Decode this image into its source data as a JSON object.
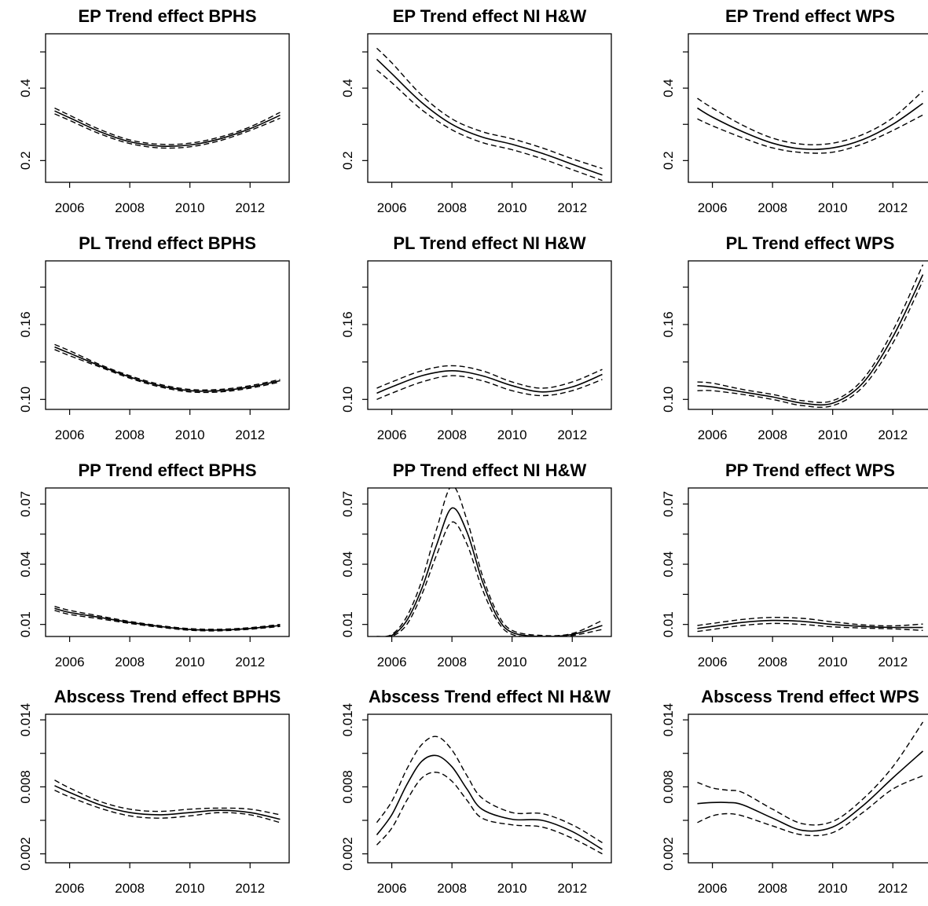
{
  "chart_data": [
    {
      "type": "line",
      "title": "EP Trend effect  BPHS",
      "xticks": [
        2006,
        2008,
        2010,
        2012
      ],
      "yticks": [
        "0.2",
        "0.4"
      ],
      "xlim": [
        2005.2,
        2013.3
      ],
      "ylim": [
        0.14,
        0.55
      ],
      "x": [
        2005.5,
        2006,
        2007,
        2008,
        2009,
        2010,
        2011,
        2012,
        2013
      ],
      "series": [
        {
          "style": "solid",
          "values": [
            0.337,
            0.318,
            0.28,
            0.252,
            0.24,
            0.243,
            0.26,
            0.288,
            0.325
          ]
        },
        {
          "style": "dashed",
          "values": [
            0.345,
            0.325,
            0.286,
            0.257,
            0.245,
            0.248,
            0.265,
            0.293,
            0.333
          ]
        },
        {
          "style": "dashed",
          "values": [
            0.329,
            0.311,
            0.274,
            0.247,
            0.235,
            0.238,
            0.255,
            0.283,
            0.317
          ]
        }
      ]
    },
    {
      "type": "line",
      "title": "EP Trend effect  NI H&W",
      "xticks": [
        2006,
        2008,
        2010,
        2012
      ],
      "yticks": [
        "0.2",
        "0.4"
      ],
      "xlim": [
        2005.2,
        2013.3
      ],
      "ylim": [
        0.14,
        0.55
      ],
      "x": [
        2005.5,
        2006,
        2007,
        2008,
        2009,
        2010,
        2011,
        2012,
        2013
      ],
      "series": [
        {
          "style": "solid",
          "values": [
            0.48,
            0.44,
            0.36,
            0.3,
            0.265,
            0.245,
            0.22,
            0.19,
            0.16
          ]
        },
        {
          "style": "dashed",
          "values": [
            0.51,
            0.47,
            0.38,
            0.315,
            0.28,
            0.26,
            0.235,
            0.205,
            0.178
          ]
        },
        {
          "style": "dashed",
          "values": [
            0.45,
            0.415,
            0.34,
            0.285,
            0.25,
            0.23,
            0.205,
            0.175,
            0.145
          ]
        }
      ]
    },
    {
      "type": "line",
      "title": "EP Trend effect  WPS",
      "xticks": [
        2006,
        2008,
        2010,
        2012
      ],
      "yticks": [
        "0.2",
        "0.4"
      ],
      "xlim": [
        2005.2,
        2013.3
      ],
      "ylim": [
        0.14,
        0.55
      ],
      "x": [
        2005.5,
        2006,
        2007,
        2008,
        2009,
        2010,
        2011,
        2012,
        2013
      ],
      "series": [
        {
          "style": "solid",
          "values": [
            0.345,
            0.32,
            0.28,
            0.248,
            0.232,
            0.235,
            0.258,
            0.3,
            0.358
          ]
        },
        {
          "style": "dashed",
          "values": [
            0.372,
            0.345,
            0.298,
            0.262,
            0.245,
            0.248,
            0.272,
            0.318,
            0.392
          ]
        },
        {
          "style": "dashed",
          "values": [
            0.315,
            0.296,
            0.263,
            0.235,
            0.222,
            0.223,
            0.246,
            0.283,
            0.326
          ]
        }
      ]
    },
    {
      "type": "line",
      "title": "PL Trend effect  BPHS",
      "xticks": [
        2006,
        2008,
        2010,
        2012
      ],
      "yticks": [
        "0.10",
        "0.16"
      ],
      "xlim": [
        2005.2,
        2013.3
      ],
      "ylim": [
        0.092,
        0.211
      ],
      "x": [
        2005.5,
        2006,
        2007,
        2008,
        2009,
        2010,
        2011,
        2012,
        2013
      ],
      "series": [
        {
          "style": "solid",
          "values": [
            0.142,
            0.137,
            0.127,
            0.118,
            0.111,
            0.107,
            0.107,
            0.11,
            0.115
          ]
        },
        {
          "style": "dashed",
          "values": [
            0.144,
            0.139,
            0.128,
            0.119,
            0.112,
            0.108,
            0.108,
            0.111,
            0.116
          ]
        },
        {
          "style": "dashed",
          "values": [
            0.14,
            0.135,
            0.126,
            0.117,
            0.11,
            0.106,
            0.106,
            0.109,
            0.114
          ]
        }
      ]
    },
    {
      "type": "line",
      "title": "PL Trend effect  NI H&W",
      "xticks": [
        2006,
        2008,
        2010,
        2012
      ],
      "yticks": [
        "0.10",
        "0.16"
      ],
      "xlim": [
        2005.2,
        2013.3
      ],
      "ylim": [
        0.092,
        0.211
      ],
      "x": [
        2005.5,
        2006,
        2007,
        2008,
        2009,
        2010,
        2011,
        2012,
        2013
      ],
      "series": [
        {
          "style": "solid",
          "values": [
            0.105,
            0.11,
            0.119,
            0.123,
            0.119,
            0.111,
            0.106,
            0.11,
            0.12
          ]
        },
        {
          "style": "dashed",
          "values": [
            0.109,
            0.114,
            0.123,
            0.127,
            0.123,
            0.114,
            0.109,
            0.114,
            0.124
          ]
        },
        {
          "style": "dashed",
          "values": [
            0.1,
            0.105,
            0.114,
            0.119,
            0.115,
            0.107,
            0.103,
            0.107,
            0.116
          ]
        }
      ]
    },
    {
      "type": "line",
      "title": "PL Trend effect  WPS",
      "xticks": [
        2006,
        2008,
        2010,
        2012
      ],
      "yticks": [
        "0.10",
        "0.16"
      ],
      "xlim": [
        2005.2,
        2013.3
      ],
      "ylim": [
        0.092,
        0.211
      ],
      "x": [
        2005.5,
        2006,
        2007,
        2008,
        2009,
        2010,
        2011,
        2012,
        2013
      ],
      "series": [
        {
          "style": "solid",
          "values": [
            0.111,
            0.11,
            0.106,
            0.102,
            0.097,
            0.097,
            0.113,
            0.15,
            0.2
          ]
        },
        {
          "style": "dashed",
          "values": [
            0.114,
            0.113,
            0.108,
            0.104,
            0.099,
            0.099,
            0.116,
            0.155,
            0.208
          ]
        },
        {
          "style": "dashed",
          "values": [
            0.107,
            0.107,
            0.104,
            0.1,
            0.095,
            0.095,
            0.11,
            0.145,
            0.195
          ]
        }
      ]
    },
    {
      "type": "line",
      "title": "PP Trend effect BPHS",
      "xticks": [
        2006,
        2008,
        2010,
        2012
      ],
      "yticks": [
        "0.01",
        "0.04",
        "0.07"
      ],
      "xlim": [
        2005.2,
        2013.3
      ],
      "ylim": [
        0.004,
        0.078
      ],
      "x": [
        2005.5,
        2006,
        2007,
        2008,
        2009,
        2010,
        2011,
        2012,
        2013
      ],
      "series": [
        {
          "style": "solid",
          "values": [
            0.018,
            0.016,
            0.0135,
            0.011,
            0.009,
            0.0075,
            0.0072,
            0.008,
            0.0095
          ]
        },
        {
          "style": "dashed",
          "values": [
            0.019,
            0.017,
            0.0142,
            0.0115,
            0.0094,
            0.0079,
            0.0076,
            0.0084,
            0.01
          ]
        },
        {
          "style": "dashed",
          "values": [
            0.017,
            0.015,
            0.0128,
            0.0105,
            0.0086,
            0.0071,
            0.0068,
            0.0076,
            0.009
          ]
        }
      ]
    },
    {
      "type": "line",
      "title": "PP Trend effect NI H&W",
      "xticks": [
        2006,
        2008,
        2010,
        2012
      ],
      "yticks": [
        "0.01",
        "0.04",
        "0.07"
      ],
      "xlim": [
        2005.2,
        2013.3
      ],
      "ylim": [
        0.004,
        0.078
      ],
      "x": [
        2005.5,
        2006,
        2006.5,
        2007,
        2007.5,
        2008,
        2008.5,
        2009,
        2009.5,
        2010,
        2011,
        2012,
        2013
      ],
      "series": [
        {
          "style": "solid",
          "values": [
            0.0035,
            0.0045,
            0.012,
            0.028,
            0.05,
            0.068,
            0.056,
            0.032,
            0.014,
            0.006,
            0.004,
            0.005,
            0.0095
          ]
        },
        {
          "style": "dashed",
          "values": [
            0.004,
            0.005,
            0.014,
            0.032,
            0.058,
            0.079,
            0.062,
            0.035,
            0.016,
            0.007,
            0.0045,
            0.0055,
            0.012
          ]
        },
        {
          "style": "dashed",
          "values": [
            0.003,
            0.004,
            0.01,
            0.025,
            0.045,
            0.061,
            0.05,
            0.028,
            0.012,
            0.005,
            0.0035,
            0.0045,
            0.0075
          ]
        }
      ]
    },
    {
      "type": "line",
      "title": "PP Trend effect WPS",
      "xticks": [
        2006,
        2008,
        2010,
        2012
      ],
      "yticks": [
        "0.01",
        "0.04",
        "0.07"
      ],
      "xlim": [
        2005.2,
        2013.3
      ],
      "ylim": [
        0.004,
        0.078
      ],
      "x": [
        2005.5,
        2006,
        2007,
        2008,
        2009,
        2010,
        2011,
        2012,
        2013
      ],
      "series": [
        {
          "style": "solid",
          "values": [
            0.008,
            0.009,
            0.011,
            0.012,
            0.0115,
            0.01,
            0.009,
            0.0085,
            0.0085
          ]
        },
        {
          "style": "dashed",
          "values": [
            0.0095,
            0.0105,
            0.0125,
            0.0135,
            0.013,
            0.0113,
            0.0098,
            0.0093,
            0.0102
          ]
        },
        {
          "style": "dashed",
          "values": [
            0.0065,
            0.0075,
            0.0095,
            0.0105,
            0.01,
            0.0088,
            0.0082,
            0.0078,
            0.007
          ]
        }
      ]
    },
    {
      "type": "line",
      "title": "Abscess Trend effect BPHS",
      "xticks": [
        2006,
        2008,
        2010,
        2012
      ],
      "yticks": [
        "0.002",
        "0.008",
        "0.014"
      ],
      "xlim": [
        2005.2,
        2013.3
      ],
      "ylim": [
        0.0012,
        0.0145
      ],
      "x": [
        2005.5,
        2006,
        2007,
        2008,
        2009,
        2010,
        2011,
        2012,
        2013
      ],
      "series": [
        {
          "style": "solid",
          "values": [
            0.0081,
            0.0075,
            0.0064,
            0.0057,
            0.0055,
            0.0057,
            0.0059,
            0.0057,
            0.0051
          ]
        },
        {
          "style": "dashed",
          "values": [
            0.0086,
            0.0079,
            0.0067,
            0.006,
            0.0058,
            0.006,
            0.0061,
            0.006,
            0.0055
          ]
        },
        {
          "style": "dashed",
          "values": [
            0.0077,
            0.0071,
            0.0061,
            0.0054,
            0.0052,
            0.0054,
            0.0057,
            0.0055,
            0.0048
          ]
        }
      ]
    },
    {
      "type": "line",
      "title": "Abscess Trend effect NI H&W",
      "xticks": [
        2006,
        2008,
        2010,
        2012
      ],
      "yticks": [
        "0.002",
        "0.008",
        "0.014"
      ],
      "xlim": [
        2005.2,
        2013.3
      ],
      "ylim": [
        0.0012,
        0.0145
      ],
      "x": [
        2005.5,
        2006,
        2006.5,
        2007,
        2007.5,
        2008,
        2008.5,
        2009,
        2010,
        2011,
        2012,
        2013
      ],
      "series": [
        {
          "style": "solid",
          "values": [
            0.0037,
            0.0055,
            0.0082,
            0.0103,
            0.0108,
            0.0098,
            0.0078,
            0.006,
            0.0051,
            0.005,
            0.004,
            0.0024
          ]
        },
        {
          "style": "dashed",
          "values": [
            0.0048,
            0.0067,
            0.0096,
            0.0118,
            0.0125,
            0.0113,
            0.009,
            0.007,
            0.0057,
            0.0056,
            0.0046,
            0.003
          ]
        },
        {
          "style": "dashed",
          "values": [
            0.0028,
            0.0043,
            0.0068,
            0.0088,
            0.0093,
            0.0085,
            0.0068,
            0.0052,
            0.0046,
            0.0044,
            0.0034,
            0.002
          ]
        }
      ]
    },
    {
      "type": "line",
      "title": "Abscess Trend effect WPS",
      "xticks": [
        2006,
        2008,
        2010,
        2012
      ],
      "yticks": [
        "0.002",
        "0.008",
        "0.014"
      ],
      "xlim": [
        2005.2,
        2013.3
      ],
      "ylim": [
        0.0012,
        0.0145
      ],
      "x": [
        2005.5,
        2006,
        2006.5,
        2007,
        2008,
        2009,
        2010,
        2011,
        2012,
        2013
      ],
      "series": [
        {
          "style": "solid",
          "values": [
            0.0065,
            0.0066,
            0.0066,
            0.0064,
            0.0052,
            0.0041,
            0.0044,
            0.0063,
            0.0088,
            0.0112
          ]
        },
        {
          "style": "dashed",
          "values": [
            0.0084,
            0.0079,
            0.0077,
            0.0075,
            0.006,
            0.0047,
            0.0049,
            0.0069,
            0.0098,
            0.0138
          ]
        },
        {
          "style": "dashed",
          "values": [
            0.0048,
            0.0054,
            0.0056,
            0.0054,
            0.0045,
            0.0037,
            0.0039,
            0.0057,
            0.0078,
            0.009
          ]
        }
      ]
    }
  ]
}
